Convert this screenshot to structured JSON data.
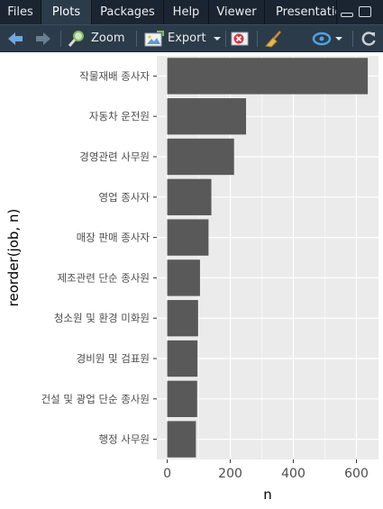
{
  "tabs": [
    {
      "label": "Files",
      "active": false
    },
    {
      "label": "Plots",
      "active": true
    },
    {
      "label": "Packages",
      "active": false
    },
    {
      "label": "Help",
      "active": false
    },
    {
      "label": "Viewer",
      "active": false
    },
    {
      "label": "Presentation",
      "active": false
    }
  ],
  "toolbar": {
    "zoom_label": "Zoom",
    "export_label": "Export"
  },
  "chart_data": {
    "type": "bar",
    "orientation": "horizontal",
    "categories": [
      "작물재배 종사자",
      "자동차 운전원",
      "경영관련 사무원",
      "영업 종사자",
      "매장 판매 종사자",
      "제조관련 단순 종사원",
      "청소원 및 환경 미화원",
      "경비원 및 검표원",
      "건설 및 광업 단순 종사원",
      "행정 사무원"
    ],
    "values": [
      636,
      250,
      212,
      140,
      131,
      104,
      98,
      96,
      95,
      91
    ],
    "xlabel": "n",
    "ylabel": "reorder(job, n)",
    "x_ticks": [
      0,
      200,
      400,
      600
    ],
    "xlim": [
      -33,
      670
    ],
    "bar_color": "#595959",
    "panel_color": "#ebebeb",
    "grid": true
  },
  "colors": {
    "tab_bg": "#1a2531",
    "toolbar_bg": "#2c3b49"
  }
}
